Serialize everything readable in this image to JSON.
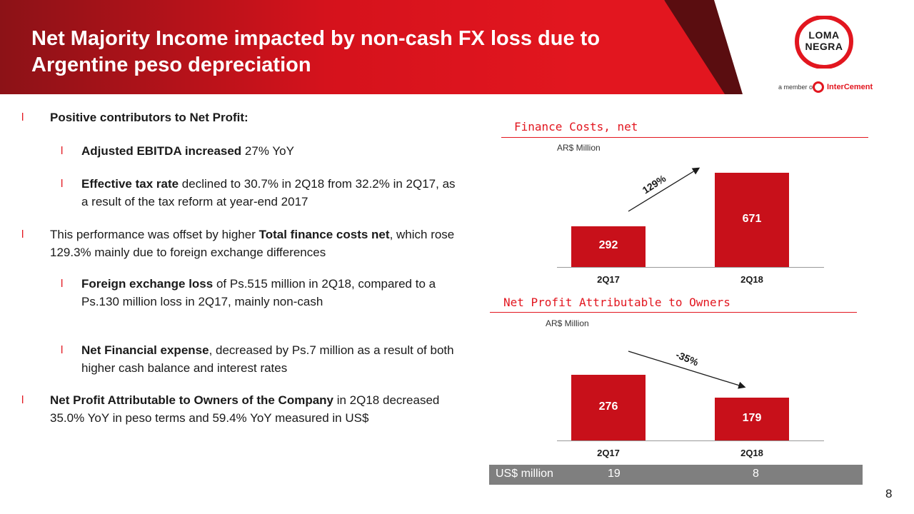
{
  "header": {
    "title_line1": "Net Majority Income impacted by non-cash FX loss due to",
    "title_line2": "Argentine peso depreciation"
  },
  "logo": {
    "line1": "LOMA",
    "line2": "NEGRA",
    "member_prefix": "a member of",
    "member_brand": "InterCement"
  },
  "bullets": [
    {
      "level": 1,
      "parts": [
        {
          "bold": true,
          "text": "Positive contributors to Net Profit:"
        }
      ]
    },
    {
      "level": 2,
      "parts": [
        {
          "bold": true,
          "text": "Adjusted EBITDA increased"
        },
        {
          "bold": false,
          "text": " 27% YoY"
        }
      ]
    },
    {
      "level": 2,
      "parts": [
        {
          "bold": true,
          "text": "Effective tax rate"
        },
        {
          "bold": false,
          "text": " declined to 30.7% in 2Q18 from 32.2% in 2Q17, as a result of the tax reform at year-end 2017"
        }
      ]
    },
    {
      "level": 1,
      "parts": [
        {
          "bold": false,
          "text": "This performance was offset by higher "
        },
        {
          "bold": true,
          "text": "Total finance costs net"
        },
        {
          "bold": false,
          "text": ", which rose 129.3% mainly due to foreign exchange differences"
        }
      ]
    },
    {
      "level": 2,
      "parts": [
        {
          "bold": true,
          "text": "Foreign exchange loss"
        },
        {
          "bold": false,
          "text": " of Ps.515 million in 2Q18, compared to a Ps.130 million loss in 2Q17, mainly non-cash"
        }
      ]
    },
    {
      "level": 2,
      "parts": [
        {
          "bold": true,
          "text": "Net Financial expense"
        },
        {
          "bold": false,
          "text": ", decreased by Ps.7 million as a result of both higher cash balance and interest rates"
        }
      ]
    },
    {
      "level": 1,
      "parts": [
        {
          "bold": true,
          "text": "Net Profit Attributable to Owners of the Company"
        },
        {
          "bold": false,
          "text": " in 2Q18 decreased 35.0% YoY in peso terms and 59.4% YoY measured in US$"
        }
      ]
    }
  ],
  "bullet_marker": "l",
  "chart_data": [
    {
      "type": "bar",
      "title": "Finance Costs, net",
      "unit": "AR$ Million",
      "categories": [
        "2Q17",
        "2Q18"
      ],
      "values": [
        292,
        671
      ],
      "growth_label": "129%"
    },
    {
      "type": "bar",
      "title": "Net Profit Attributable to Owners",
      "unit": "AR$ Million",
      "categories": [
        "2Q17",
        "2Q18"
      ],
      "values": [
        276,
        179
      ],
      "growth_label": "-35%"
    }
  ],
  "usd_row": {
    "label": "US$ million",
    "values": [
      "19",
      "8"
    ]
  },
  "page_number": "8",
  "colors": {
    "accent": "#e2161f",
    "bar": "#c8101a",
    "banner_dark": "#8c1217",
    "usd_bar": "#7f7f7f"
  }
}
